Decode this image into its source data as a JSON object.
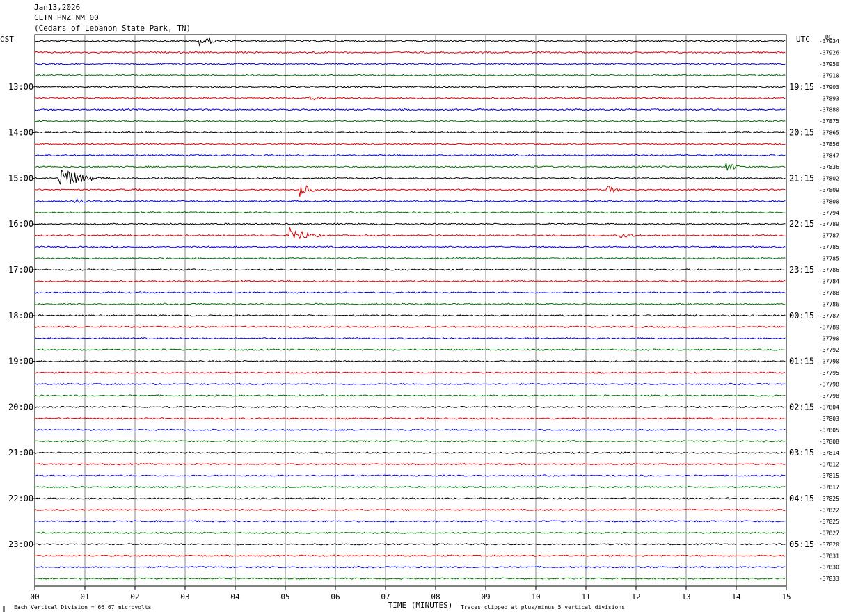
{
  "header": {
    "date": "Jan13,2026",
    "station": "CLTN HNZ NM 00",
    "location": "(Cedars of Lebanon State Park, TN)"
  },
  "left_timezone": "CST",
  "right_timezone": "UTC",
  "dc_label": "DC",
  "footer": {
    "scale_note": "Each Vertical Division =   66.67 microvolts",
    "xlabel": "TIME (MINUTES)",
    "clip_note": "Traces clipped at plus/minus 5 vertical divisions"
  },
  "chart_data": {
    "type": "line",
    "subtype": "helicorder",
    "xlabel": "TIME (MINUTES)",
    "xlim": [
      0,
      15
    ],
    "x_ticks": [
      "00",
      "01",
      "02",
      "03",
      "04",
      "05",
      "06",
      "07",
      "08",
      "09",
      "10",
      "11",
      "12",
      "13",
      "14",
      "15"
    ],
    "minutes_per_trace": 15,
    "trace_colors": [
      "#000000",
      "#e00000",
      "#0000e0",
      "#007000"
    ],
    "left_hour_labels": [
      "13:00",
      "14:00",
      "15:00",
      "16:00",
      "17:00",
      "18:00",
      "19:00",
      "20:00",
      "21:00",
      "22:00",
      "23:00"
    ],
    "right_hour_labels": [
      "19:15",
      "20:15",
      "21:15",
      "22:15",
      "23:15",
      "00:15",
      "01:15",
      "02:15",
      "03:15",
      "04:15",
      "05:15"
    ],
    "dc_offsets": [
      "-37934",
      "-37926",
      "-37950",
      "-37910",
      "-37903",
      "-37893",
      "-37880",
      "-37875",
      "-37865",
      "-37856",
      "-37847",
      "-37836",
      "-37802",
      "-37809",
      "-37800",
      "-37794",
      "-37789",
      "-37787",
      "-37785",
      "-37785",
      "-37786",
      "-37784",
      "-37788",
      "-37786",
      "-37787",
      "-37789",
      "-37790",
      "-37792",
      "-37790",
      "-37795",
      "-37798",
      "-37798",
      "-37804",
      "-37803",
      "-37805",
      "-37808",
      "-37814",
      "-37812",
      "-37815",
      "-37817",
      "-37825",
      "-37822",
      "-37825",
      "-37827",
      "-37820",
      "-37831",
      "-37830",
      "-37833"
    ],
    "events": [
      {
        "trace": 0,
        "minute": 3.3,
        "amplitude": 8,
        "duration": 0.9
      },
      {
        "trace": 0,
        "minute": 14.0,
        "amplitude": 1.5,
        "duration": 0.3
      },
      {
        "trace": 1,
        "minute": 5.4,
        "amplitude": 2,
        "duration": 1.5
      },
      {
        "trace": 1,
        "minute": 9.9,
        "amplitude": 1.5,
        "duration": 1.5
      },
      {
        "trace": 5,
        "minute": 5.5,
        "amplitude": 3,
        "duration": 1.4
      },
      {
        "trace": 10,
        "minute": 3.2,
        "amplitude": 2,
        "duration": 0.5
      },
      {
        "trace": 11,
        "minute": 13.8,
        "amplitude": 10,
        "duration": 0.5
      },
      {
        "trace": 12,
        "minute": 0.5,
        "amplitude": 18,
        "duration": 1.3
      },
      {
        "trace": 13,
        "minute": 2.0,
        "amplitude": 3,
        "duration": 0.6
      },
      {
        "trace": 13,
        "minute": 5.3,
        "amplitude": 13,
        "duration": 0.5
      },
      {
        "trace": 13,
        "minute": 11.4,
        "amplitude": 10,
        "duration": 0.5
      },
      {
        "trace": 14,
        "minute": 0.8,
        "amplitude": 4,
        "duration": 1.0
      },
      {
        "trace": 16,
        "minute": 12.5,
        "amplitude": 2,
        "duration": 0.4
      },
      {
        "trace": 17,
        "minute": 5.1,
        "amplitude": 13,
        "duration": 1.0
      },
      {
        "trace": 17,
        "minute": 11.7,
        "amplitude": 4,
        "duration": 1.2
      }
    ]
  }
}
